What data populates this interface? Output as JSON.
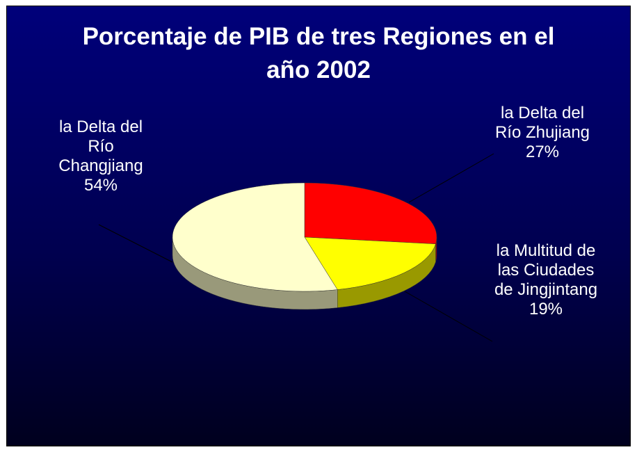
{
  "chart_data": {
    "type": "pie",
    "title": "Porcentaje de PIB de tres Regiones en el año 2002",
    "categories": [
      "la Delta del Río Zhujiang",
      "la Multitud de las Ciudades de Jingjintang",
      "la Delta del Río Changjiang"
    ],
    "values": [
      27,
      19,
      54
    ],
    "value_labels": [
      "27%",
      "19%",
      "54%"
    ],
    "colors": [
      "#ff0000",
      "#ffff00",
      "#ffffcc"
    ]
  }
}
